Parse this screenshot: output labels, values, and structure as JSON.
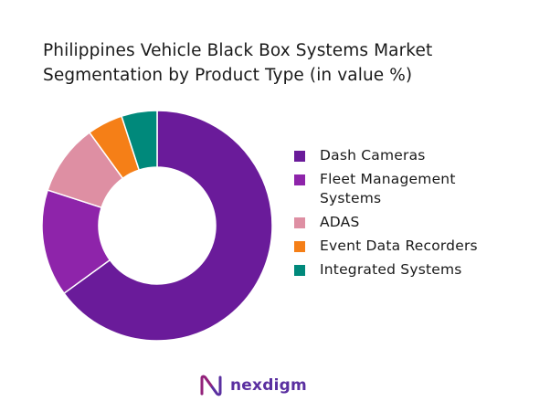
{
  "chart_data": {
    "type": "pie",
    "title": "Philippines Vehicle Black Box Systems Market Segmentation by Product Type (in value %)",
    "categories": [
      "Dash Cameras",
      "Fleet Management Systems",
      "ADAS",
      "Event Data Recorders",
      "Integrated Systems"
    ],
    "values": [
      65,
      15,
      10,
      5,
      5
    ],
    "unit": "%",
    "colors": [
      "#6a1b9a",
      "#8e24aa",
      "#de8fa3",
      "#f57f17",
      "#00897b"
    ],
    "style": "donut",
    "legend_position": "right"
  },
  "title_lines": [
    "Philippines Vehicle Black Box Systems Market",
    "Segmentation by Product Type (in value %)"
  ],
  "legend": [
    {
      "lines": [
        "Dash Cameras"
      ],
      "color": "#6a1b9a"
    },
    {
      "lines": [
        "Fleet Management",
        "Systems"
      ],
      "color": "#8e24aa"
    },
    {
      "lines": [
        "ADAS"
      ],
      "color": "#de8fa3"
    },
    {
      "lines": [
        "Event Data Recorders"
      ],
      "color": "#f57f17"
    },
    {
      "lines": [
        "Integrated Systems"
      ],
      "color": "#00897b"
    }
  ],
  "logo": {
    "text": "nexdigm",
    "icon": "nexdigm-logo-icon",
    "color": "#5a2fa0"
  }
}
